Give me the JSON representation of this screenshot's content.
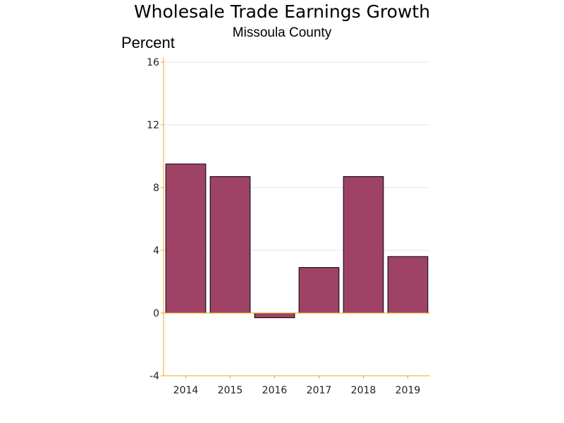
{
  "chart_data": {
    "type": "bar",
    "title": "Wholesale Trade Earnings Growth",
    "subtitle": "Missoula County",
    "ylabel": "Percent",
    "xlabel": "",
    "categories": [
      "2014",
      "2015",
      "2016",
      "2017",
      "2018",
      "2019"
    ],
    "values": [
      9.5,
      8.7,
      -0.3,
      2.9,
      8.7,
      3.6
    ],
    "ylim": [
      -4,
      16
    ],
    "yticks": [
      -4,
      0,
      4,
      8,
      12,
      16
    ],
    "ytick_labels": [
      "-4",
      "0",
      "4",
      "8",
      "12",
      "16"
    ],
    "grid": true,
    "legend": "none",
    "colors": {
      "bar": "#9e4366",
      "bar_outline": "#000000",
      "axis": "#f2a71b",
      "zero_line": "#f2a71b",
      "grid": "#e6e6e6"
    }
  }
}
